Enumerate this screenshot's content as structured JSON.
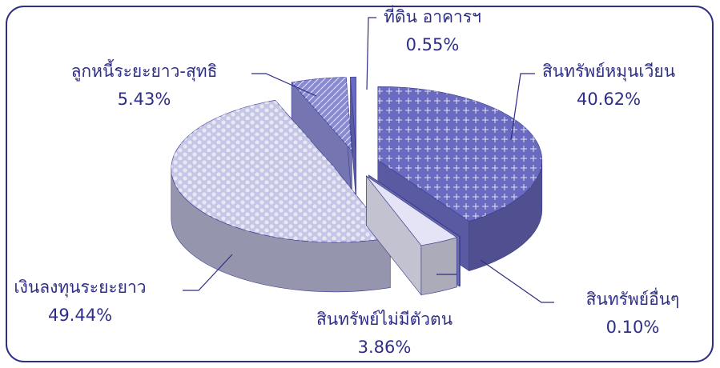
{
  "chart_data": {
    "type": "pie",
    "categories": [
      "สินทรัพย์หมุนเวียน",
      "สินทรัพย์อื่นๆ",
      "สินทรัพย์ไม่มีตัวตน",
      "เงินลงทุนระยะยาว",
      "ลูกหนี้ระยะยาว-สุทธิ",
      "ที่ดิน อาคารฯ"
    ],
    "values": [
      40.62,
      0.1,
      3.86,
      49.44,
      5.43,
      0.55
    ],
    "value_labels": [
      "40.62%",
      "0.10%",
      "3.86%",
      "49.44%",
      "5.43%",
      "0.55%"
    ],
    "colors": [
      "#6a6ac0",
      "#8080cc",
      "#e4e4f6",
      "#c6c6e6",
      "#8a8ad0",
      "#6a6ac0"
    ]
  }
}
